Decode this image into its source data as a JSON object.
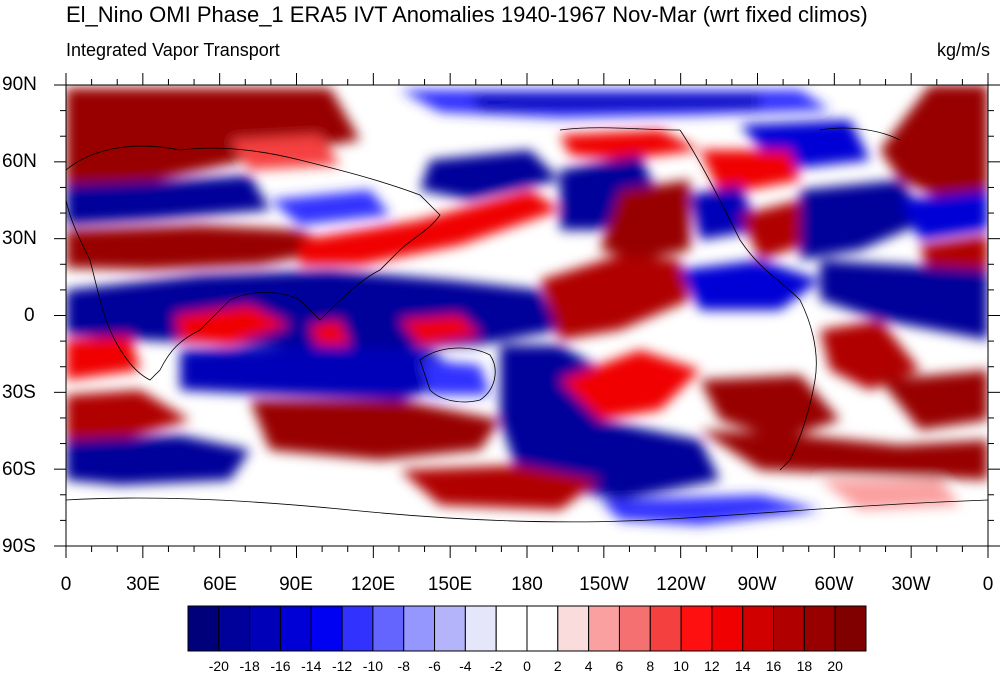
{
  "title": "El_Nino OMI Phase_1 ERA5 IVT Anomalies 1940-1967 Nov-Mar (wrt fixed climos)",
  "subtitle_left": "Integrated Vapor Transport",
  "subtitle_right": "kg/m/s",
  "lat_labels": [
    "90N",
    "60N",
    "30N",
    "0",
    "30S",
    "60S",
    "90S"
  ],
  "lon_labels": [
    "0",
    "30E",
    "60E",
    "90E",
    "120E",
    "150E",
    "180",
    "150W",
    "120W",
    "90W",
    "60W",
    "30W",
    "0"
  ],
  "colorbar": {
    "labels": [
      "-20",
      "-18",
      "-16",
      "-14",
      "-12",
      "-10",
      "-8",
      "-6",
      "-4",
      "-2",
      "0",
      "2",
      "4",
      "6",
      "8",
      "10",
      "12",
      "14",
      "16",
      "18",
      "20"
    ],
    "colors": [
      "#00007a",
      "#00009a",
      "#0000b8",
      "#0000d6",
      "#0000f2",
      "#3232ff",
      "#6464ff",
      "#9696ff",
      "#b4b4fa",
      "#e6e6fa",
      "#ffffff",
      "#ffffff",
      "#fadcdc",
      "#faa0a0",
      "#f57070",
      "#f54040",
      "#ff1010",
      "#f00000",
      "#d00000",
      "#b00000",
      "#980000",
      "#800000"
    ]
  },
  "map_colors": {
    "land_outline": "#000000",
    "neg_strong": "#00009a",
    "neg_mid": "#3232ff",
    "neg_light": "#b4b4fa",
    "pos_strong": "#980000",
    "pos_mid": "#f00000",
    "pos_light": "#faa0a0"
  }
}
